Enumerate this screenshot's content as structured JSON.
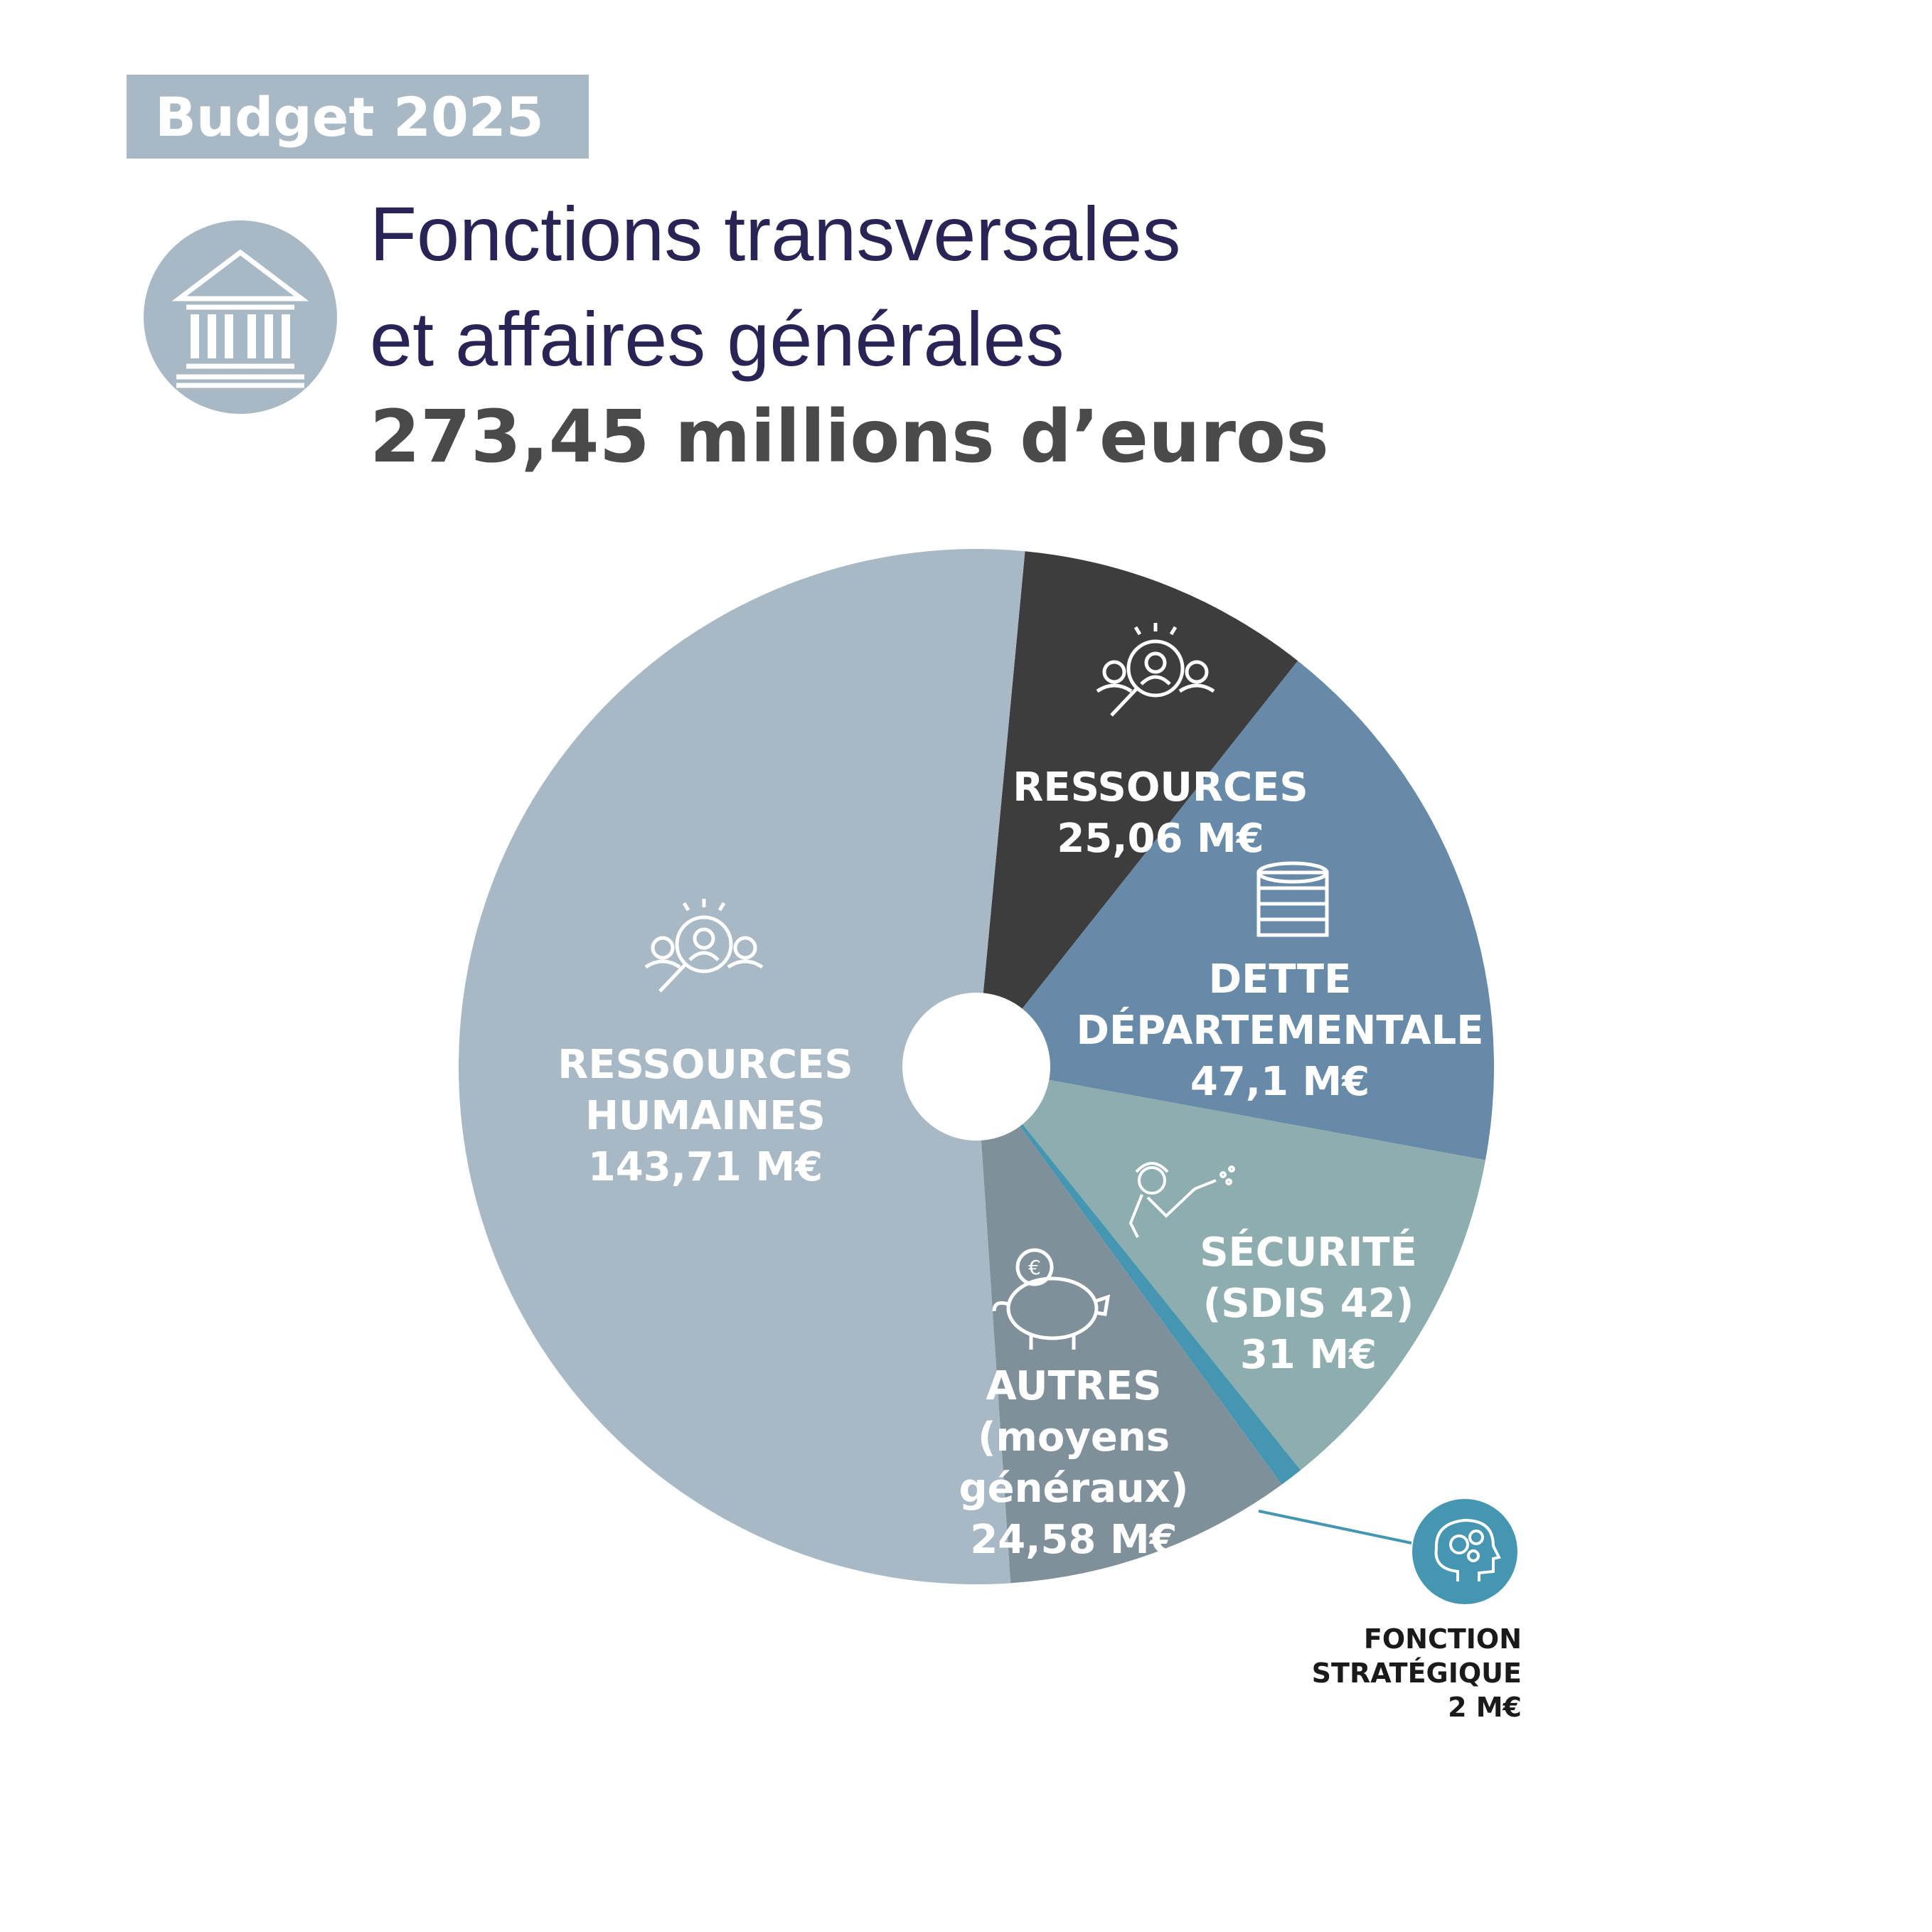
{
  "header": {
    "badge": "Budget 2025",
    "title_line1": "Fonctions transversales",
    "title_line2": "et affaires générales",
    "total": "273,45 millions d’euros"
  },
  "colors": {
    "rh": "#a8b9c5",
    "ressources": "#3d3d3d",
    "dette": "#688aa9",
    "securite": "#8dadaf",
    "strategique": "#4596b1",
    "autres": "#7f909a"
  },
  "chart_data": {
    "type": "pie",
    "total": 273.45,
    "unit": "M€",
    "slices": [
      {
        "key": "ressources",
        "value": 25.06,
        "label_lines": [
          "RESSOURCES",
          "25,06 M€"
        ],
        "icon": "people-search-icon"
      },
      {
        "key": "dette",
        "value": 47.1,
        "label_lines": [
          "DETTE",
          "DÉPARTEMENTALE",
          "47,1 M€"
        ],
        "icon": "coin-stack-icon"
      },
      {
        "key": "securite",
        "value": 31,
        "label_lines": [
          "SÉCURITÉ",
          "(SDIS 42)",
          "31 M€"
        ],
        "icon": "firefighter-icon"
      },
      {
        "key": "strategique",
        "value": 2,
        "label_lines": [
          "FONCTION",
          "STRATÉGIQUE",
          "2 M€"
        ],
        "icon": "head-gears-icon"
      },
      {
        "key": "autres",
        "value": 24.58,
        "label_lines": [
          "AUTRES",
          "(moyens",
          "généraux)",
          "24,58 M€"
        ],
        "icon": "piggy-bank-icon"
      },
      {
        "key": "rh",
        "value": 143.71,
        "label_lines": [
          "RESSOURCES",
          "HUMAINES",
          "143,71 M€"
        ],
        "icon": "people-search-icon"
      }
    ]
  }
}
